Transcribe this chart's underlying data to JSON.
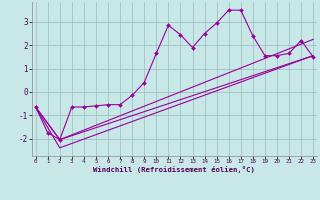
{
  "xlabel": "Windchill (Refroidissement éolien,°C)",
  "background_color": "#c8e8e8",
  "grid_color": "#99bbbb",
  "line_color": "#990099",
  "xlim": [
    -0.3,
    23.3
  ],
  "ylim": [
    -2.75,
    3.85
  ],
  "yticks": [
    -2,
    -1,
    0,
    1,
    2,
    3
  ],
  "xticks": [
    0,
    1,
    2,
    3,
    4,
    5,
    6,
    7,
    8,
    9,
    10,
    11,
    12,
    13,
    14,
    15,
    16,
    17,
    18,
    19,
    20,
    21,
    22,
    23
  ],
  "series1_x": [
    0,
    1,
    2,
    3,
    4,
    5,
    6,
    7,
    8,
    9,
    10,
    11,
    12,
    13,
    14,
    15,
    16,
    17,
    18,
    19,
    20,
    21,
    22,
    23
  ],
  "series1_y": [
    -0.65,
    -1.75,
    -2.05,
    -0.65,
    -0.65,
    -0.6,
    -0.55,
    -0.55,
    -0.15,
    0.4,
    1.65,
    2.85,
    2.45,
    1.9,
    2.5,
    2.95,
    3.5,
    3.5,
    2.4,
    1.55,
    1.55,
    1.65,
    2.2,
    1.5
  ],
  "series2_x": [
    0,
    2,
    23
  ],
  "series2_y": [
    -0.65,
    -2.05,
    1.55
  ],
  "series3_x": [
    0,
    2,
    23
  ],
  "series3_y": [
    -0.65,
    -2.05,
    2.25
  ],
  "series4_x": [
    0,
    2,
    23
  ],
  "series4_y": [
    -0.65,
    -2.4,
    1.55
  ]
}
